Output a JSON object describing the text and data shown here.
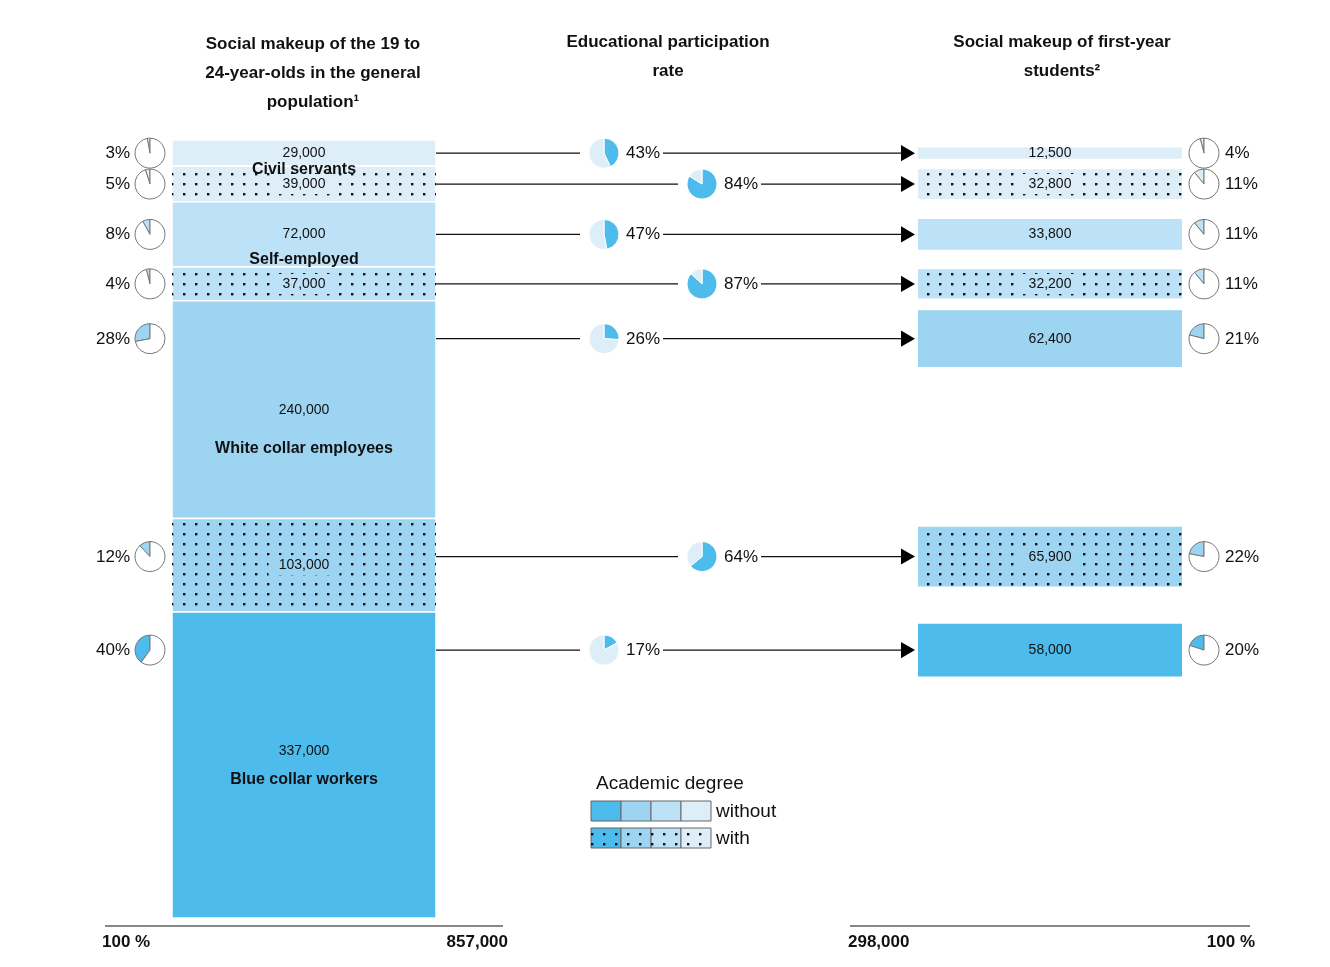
{
  "chart_data": {
    "type": "other",
    "categories": [
      "Civil servants",
      "Self-employed",
      "White collar employees",
      "Blue collar workers"
    ],
    "colors": [
      "#ddeef9",
      "#bde1f6",
      "#9dd4f2",
      "#4dbbec"
    ],
    "legend_title": "Academic degree",
    "legend": "bottom",
    "series": [
      {
        "name": "without",
        "type": "bar",
        "axis": "y",
        "colors": [
          "#ddeef9",
          "#bde1f6",
          "#9dd4f2",
          "#4dbbec"
        ],
        "values": [
          29000,
          72000,
          240000,
          337000
        ],
        "value_labels": [
          "29,000",
          "72,000",
          "240,000",
          "337,000"
        ]
      },
      {
        "name": "with",
        "type": "bar",
        "axis": "y",
        "colors": [
          "#ddeef9",
          "#bde1f6",
          "#9dd4f2",
          null
        ],
        "values": [
          39000,
          37000,
          103000,
          null
        ],
        "value_labels": [
          "39,000",
          "37,000",
          "103,000",
          null
        ]
      },
      {
        "type": "bar",
        "axis": "y2",
        "colors": [
          "#ddeef9",
          "#bde1f6",
          "#9dd4f2",
          "#4dbbec"
        ],
        "values": [
          12500,
          33800,
          62400,
          58000
        ],
        "value_labels": [
          "12,500",
          "33,800",
          "62,400",
          "58,000"
        ]
      },
      {
        "type": "bar",
        "axis": "y2",
        "colors": [
          "#ddeef9",
          "#bde1f6",
          "#9dd4f2",
          null
        ],
        "values": [
          32800,
          32200,
          65900,
          null
        ],
        "value_labels": [
          "32,800",
          "32,200",
          "65,900",
          null
        ]
      },
      {
        "type": "pie",
        "axis": "y",
        "values": [
          3,
          8,
          28,
          40
        ],
        "value_labels": [
          "3%",
          "8%",
          "28%",
          "40%"
        ]
      },
      {
        "type": "pie",
        "axis": "y",
        "values": [
          5,
          4,
          12,
          null
        ],
        "value_labels": [
          "5%",
          "4%",
          "12%",
          null
        ]
      },
      {
        "type": "pie",
        "values": [
          43,
          47,
          26,
          17
        ],
        "value_labels": [
          "43%",
          "47%",
          "26%",
          "17%"
        ]
      },
      {
        "type": "pie",
        "values": [
          84,
          87,
          64,
          null
        ],
        "value_labels": [
          "84%",
          "87%",
          "64%",
          null
        ]
      },
      {
        "type": "pie",
        "axis": "y2",
        "values": [
          4,
          11,
          21,
          20
        ],
        "value_labels": [
          "4%",
          "11%",
          "21%",
          "20%"
        ]
      },
      {
        "type": "pie",
        "axis": "y2",
        "values": [
          11,
          11,
          22,
          null
        ],
        "value_labels": [
          "11%",
          "11%",
          "22%",
          null
        ]
      }
    ],
    "annotations": [
      "Social makeup of the 19 to 24-year-olds in the general population¹",
      "Educational participation rate",
      "Social makeup of first-year students²",
      "100 %",
      "857,000",
      "298,000",
      "100 %"
    ]
  }
}
